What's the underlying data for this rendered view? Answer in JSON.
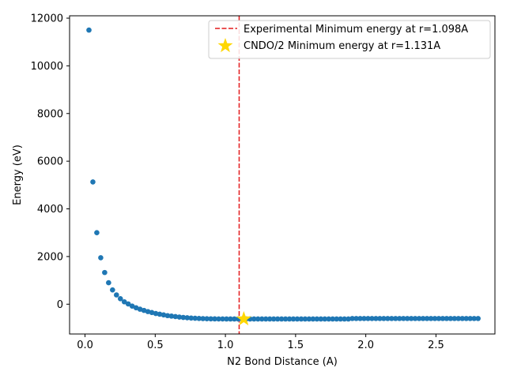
{
  "chart_data": {
    "type": "scatter",
    "xlabel": "N2 Bond Distance (A)",
    "ylabel": "Energy (eV)",
    "xlim": [
      -0.11,
      2.92
    ],
    "ylim": [
      -1250,
      12100
    ],
    "xticks": [
      0.0,
      0.5,
      1.0,
      1.5,
      2.0,
      2.5
    ],
    "xtick_labels": [
      "0.0",
      "0.5",
      "1.0",
      "1.5",
      "2.0",
      "2.5"
    ],
    "yticks": [
      0,
      2000,
      4000,
      6000,
      8000,
      10000,
      12000
    ],
    "ytick_labels": [
      "0",
      "2000",
      "4000",
      "6000",
      "8000",
      "10000",
      "12000"
    ],
    "grid": false,
    "legend_position": "top-right",
    "colors": {
      "points": "#1f77b4",
      "experimental_line": "#e31a1c",
      "cndo_star": "#ffd700"
    },
    "scatter_series": {
      "x_start": 0.028,
      "x_step": 0.028,
      "x_end": 2.8,
      "explicit_points": [
        [
          0.028,
          11500
        ],
        [
          0.056,
          5130
        ],
        [
          0.084,
          3000
        ],
        [
          0.112,
          1950
        ],
        [
          0.14,
          1330
        ],
        [
          0.168,
          900
        ],
        [
          0.196,
          600
        ],
        [
          0.224,
          390
        ],
        [
          0.252,
          230
        ],
        [
          0.28,
          100
        ],
        [
          0.308,
          10
        ],
        [
          0.336,
          -80
        ],
        [
          0.364,
          -150
        ],
        [
          0.392,
          -210
        ],
        [
          0.42,
          -260
        ],
        [
          0.448,
          -310
        ],
        [
          0.476,
          -350
        ],
        [
          0.504,
          -390
        ],
        [
          0.532,
          -420
        ],
        [
          0.56,
          -450
        ],
        [
          0.588,
          -480
        ],
        [
          0.616,
          -500
        ],
        [
          0.644,
          -520
        ],
        [
          0.672,
          -540
        ],
        [
          0.7,
          -555
        ],
        [
          0.728,
          -570
        ],
        [
          0.756,
          -580
        ],
        [
          0.784,
          -590
        ],
        [
          0.812,
          -598
        ],
        [
          0.84,
          -604
        ],
        [
          0.868,
          -609
        ],
        [
          0.896,
          -613
        ],
        [
          0.924,
          -616
        ],
        [
          0.952,
          -618
        ],
        [
          0.98,
          -619
        ],
        [
          1.008,
          -620
        ],
        [
          1.036,
          -620
        ],
        [
          1.064,
          -620
        ],
        [
          1.092,
          -620
        ],
        [
          1.12,
          -620
        ]
      ],
      "plateau_value": -620,
      "plateau_after_1_9": -600
    },
    "vertical_line": {
      "x": 1.098,
      "label": "Experimental Minimum energy at r=1.098A"
    },
    "star_point": {
      "x": 1.131,
      "y": -620,
      "label": "CNDO/2 Minimum energy at r=1.131A"
    }
  }
}
